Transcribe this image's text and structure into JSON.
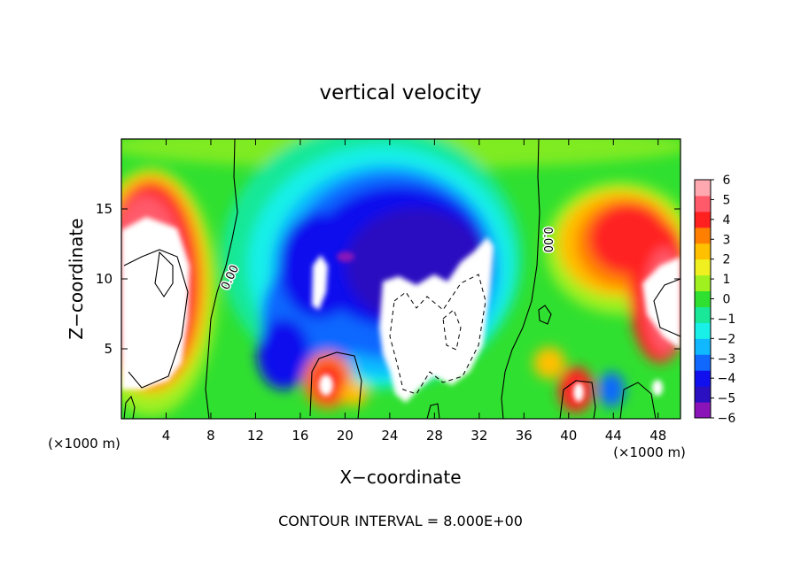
{
  "chart_data": {
    "type": "heatmap",
    "title": "vertical velocity",
    "xlabel": "X−coordinate",
    "ylabel": "Z−coordinate",
    "x_unit_left": "(×1000 m)",
    "x_unit_right": "(×1000 m)",
    "footer": "CONTOUR INTERVAL = 8.000E+00",
    "xlim": [
      0,
      50
    ],
    "ylim": [
      0,
      20
    ],
    "x_ticks": [
      4,
      8,
      12,
      16,
      20,
      24,
      28,
      32,
      36,
      40,
      44,
      48
    ],
    "x_tick_labels": [
      "4",
      "8",
      "12",
      "16",
      "20",
      "24",
      "28",
      "32",
      "36",
      "40",
      "44",
      "48"
    ],
    "y_ticks": [
      5,
      10,
      15
    ],
    "y_tick_labels": [
      "5",
      "10",
      "15"
    ],
    "colorbar": {
      "range": [
        -6,
        6
      ],
      "ticks": [
        6,
        5,
        4,
        3,
        2,
        1,
        0,
        -1,
        -2,
        -3,
        -4,
        -5,
        -6
      ],
      "tick_labels": [
        "6",
        "5",
        "4",
        "3",
        "2",
        "1",
        "0",
        "−1",
        "−2",
        "−3",
        "−4",
        "−5",
        "−6"
      ],
      "colors": [
        "#8a14b8",
        "#2a10c0",
        "#1010ee",
        "#1068ff",
        "#10b8ff",
        "#18f0e8",
        "#18e898",
        "#30e030",
        "#a0f020",
        "#f0f020",
        "#ffc000",
        "#ff8000",
        "#ff2020",
        "#ff5a6a",
        "#ffa8b0"
      ],
      "out_of_range_color": "#ffffff"
    },
    "contour_labels": [
      {
        "text": "0.00",
        "x": 10.0,
        "y": 10.0,
        "rotation": -65
      },
      {
        "text": "0.00",
        "x": 37.8,
        "y": 12.8,
        "rotation": 90
      }
    ],
    "features": [
      {
        "name": "updraft-left",
        "sign": "positive",
        "x": 3.0,
        "z": 10.0,
        "peak": 6.5
      },
      {
        "name": "downdraft-center",
        "sign": "negative",
        "x": 28.0,
        "z": 8.0,
        "peak": -9.0
      },
      {
        "name": "updraft-right",
        "sign": "positive",
        "x": 46.0,
        "z": 12.0,
        "peak": 5.0
      },
      {
        "name": "low-level-cell-18",
        "sign": "positive",
        "x": 18.0,
        "z": 2.5,
        "peak": 6.5
      },
      {
        "name": "low-level-cell-40",
        "sign": "positive",
        "x": 40.5,
        "z": 1.8,
        "peak": 6.5
      }
    ]
  }
}
